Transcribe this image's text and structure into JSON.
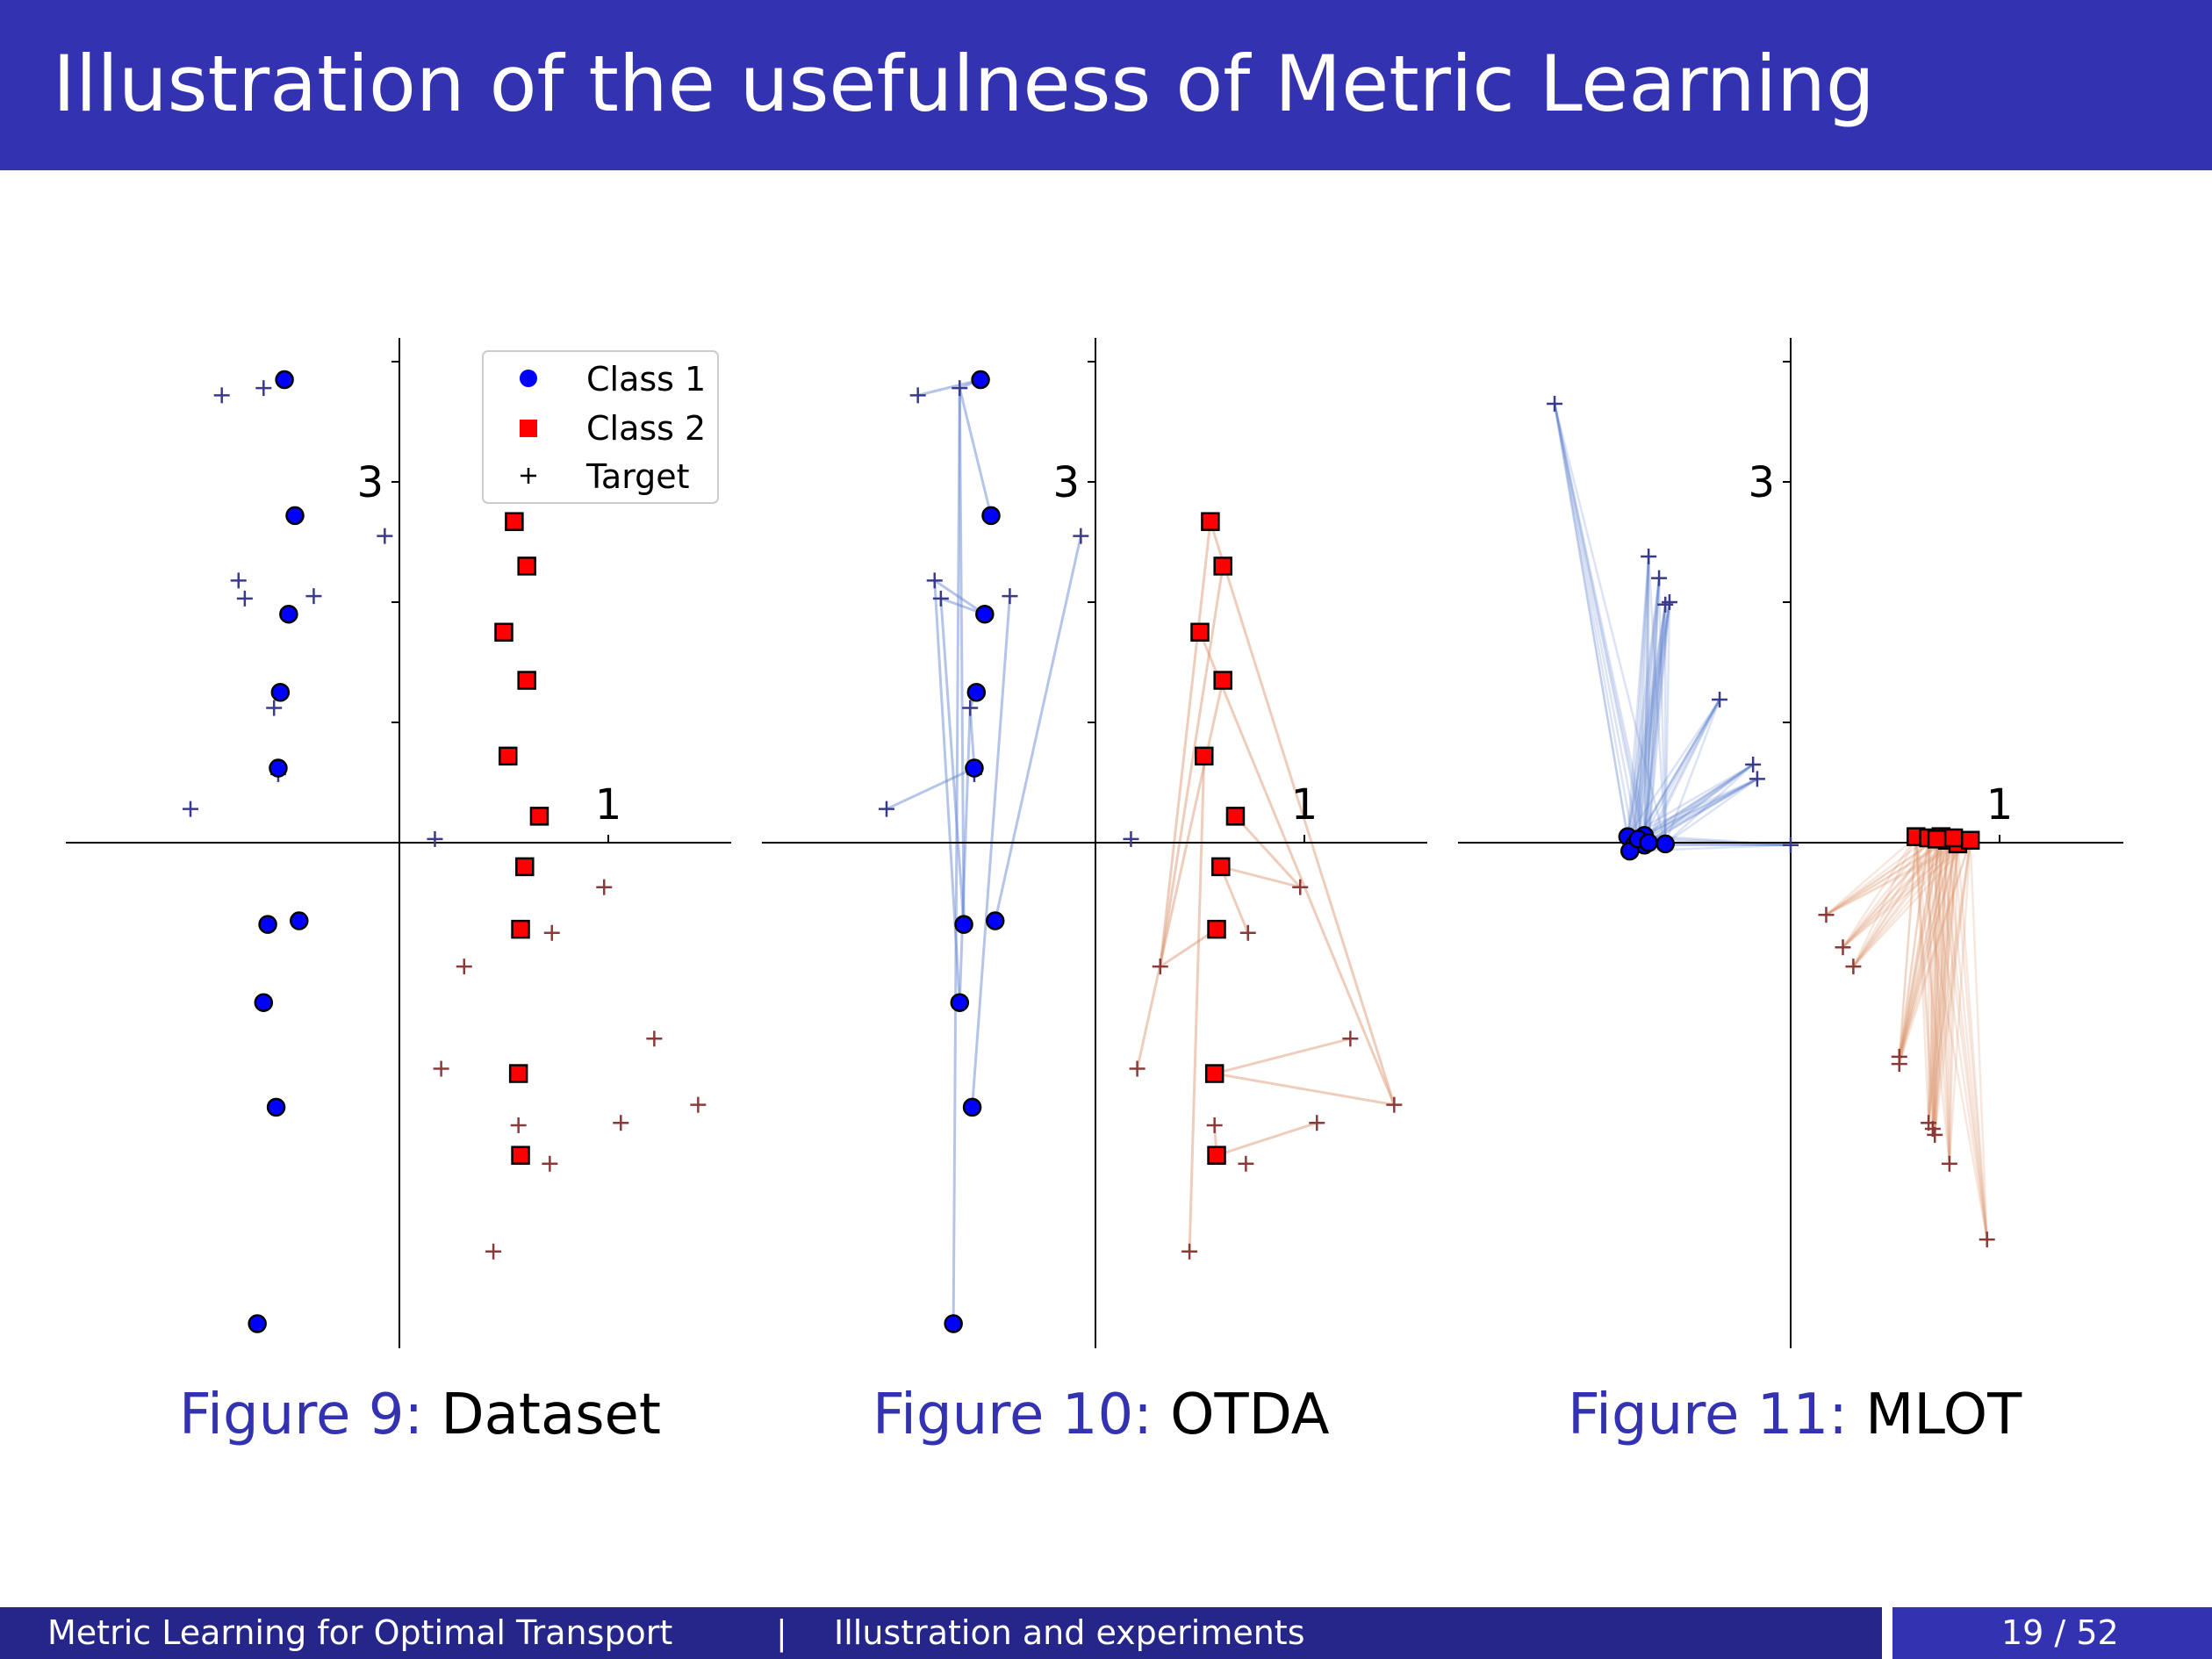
{
  "slide": {
    "title": "Illustration of the usefulness of Metric Learning"
  },
  "footer": {
    "talk_title": "Metric Learning for Optimal Transport",
    "separator": "|",
    "section": "Illustration and experiments",
    "page": "19 / 52"
  },
  "colors": {
    "title_bar": "#3333b2",
    "footer_dark": "#25258a",
    "class1": "#0000ff",
    "class2": "#ff0000",
    "target_blue": "#3a3a8c",
    "target_red": "#8b3a3a",
    "link_blue": "#5b7fcf",
    "link_red": "#d9906a"
  },
  "legend": [
    {
      "marker": "circle",
      "label": "Class 1"
    },
    {
      "marker": "square",
      "label": "Class 2"
    },
    {
      "marker": "plus",
      "label": "Target"
    }
  ],
  "chart_data": [
    {
      "type": "scatter",
      "caption_prefix": "Figure 9:",
      "caption": "Dataset",
      "tick_labels": {
        "x": "1",
        "y": "3"
      },
      "xlim": [
        -1.6,
        1.6
      ],
      "ylim": [
        -4.1,
        4.2
      ],
      "class1": [
        [
          -0.55,
          3.85
        ],
        [
          -0.5,
          2.72
        ],
        [
          -0.53,
          1.9
        ],
        [
          -0.57,
          1.25
        ],
        [
          -0.58,
          0.62
        ],
        [
          -0.63,
          -0.68
        ],
        [
          -0.48,
          -0.65
        ],
        [
          -0.65,
          -1.33
        ],
        [
          -0.59,
          -2.2
        ],
        [
          -0.68,
          -4.0
        ]
      ],
      "class2": [
        [
          0.55,
          2.67
        ],
        [
          0.61,
          2.3
        ],
        [
          0.5,
          1.75
        ],
        [
          0.61,
          1.35
        ],
        [
          0.52,
          0.72
        ],
        [
          0.67,
          0.22
        ],
        [
          0.6,
          -0.2
        ],
        [
          0.58,
          -0.72
        ],
        [
          0.57,
          -1.92
        ],
        [
          0.58,
          -2.6
        ]
      ],
      "target_class1": [
        [
          -0.85,
          3.72
        ],
        [
          -0.65,
          3.78
        ],
        [
          -0.07,
          2.55
        ],
        [
          -0.77,
          2.18
        ],
        [
          -0.74,
          2.03
        ],
        [
          -0.41,
          2.05
        ],
        [
          -0.6,
          1.12
        ],
        [
          -0.58,
          0.57
        ],
        [
          -1.0,
          0.28
        ],
        [
          0.17,
          0.03
        ]
      ],
      "target_class2": [
        [
          0.98,
          -0.37
        ],
        [
          0.73,
          -0.75
        ],
        [
          0.31,
          -1.03
        ],
        [
          1.22,
          -1.63
        ],
        [
          0.2,
          -1.88
        ],
        [
          1.43,
          -2.18
        ],
        [
          0.57,
          -2.35
        ],
        [
          1.06,
          -2.33
        ],
        [
          0.72,
          -2.67
        ],
        [
          0.45,
          -3.4
        ]
      ],
      "show_links": false,
      "show_legend": true
    },
    {
      "type": "scatter",
      "caption_prefix": "Figure 10:",
      "caption": "OTDA",
      "tick_labels": {
        "x": "1",
        "y": "3"
      },
      "xlim": [
        -1.6,
        1.6
      ],
      "ylim": [
        -4.1,
        4.2
      ],
      "class1": [
        [
          -0.55,
          3.85
        ],
        [
          -0.5,
          2.72
        ],
        [
          -0.53,
          1.9
        ],
        [
          -0.57,
          1.25
        ],
        [
          -0.58,
          0.62
        ],
        [
          -0.63,
          -0.68
        ],
        [
          -0.48,
          -0.65
        ],
        [
          -0.65,
          -1.33
        ],
        [
          -0.59,
          -2.2
        ],
        [
          -0.68,
          -4.0
        ]
      ],
      "class2": [
        [
          0.55,
          2.67
        ],
        [
          0.61,
          2.3
        ],
        [
          0.5,
          1.75
        ],
        [
          0.61,
          1.35
        ],
        [
          0.52,
          0.72
        ],
        [
          0.67,
          0.22
        ],
        [
          0.6,
          -0.2
        ],
        [
          0.58,
          -0.72
        ],
        [
          0.57,
          -1.92
        ],
        [
          0.58,
          -2.6
        ]
      ],
      "target_class1": [
        [
          -0.85,
          3.72
        ],
        [
          -0.65,
          3.78
        ],
        [
          -0.07,
          2.55
        ],
        [
          -0.77,
          2.18
        ],
        [
          -0.74,
          2.03
        ],
        [
          -0.41,
          2.05
        ],
        [
          -0.6,
          1.12
        ],
        [
          -0.58,
          0.57
        ],
        [
          -1.0,
          0.28
        ],
        [
          0.17,
          0.03
        ]
      ],
      "target_class2": [
        [
          0.98,
          -0.37
        ],
        [
          0.73,
          -0.75
        ],
        [
          0.31,
          -1.03
        ],
        [
          1.22,
          -1.63
        ],
        [
          0.2,
          -1.88
        ],
        [
          1.43,
          -2.18
        ],
        [
          0.57,
          -2.35
        ],
        [
          1.06,
          -2.33
        ],
        [
          0.72,
          -2.67
        ],
        [
          0.45,
          -3.4
        ]
      ],
      "links_blue": [
        [
          0,
          0
        ],
        [
          0,
          1
        ],
        [
          1,
          1
        ],
        [
          2,
          4
        ],
        [
          2,
          3
        ],
        [
          3,
          6
        ],
        [
          4,
          6
        ],
        [
          4,
          8
        ],
        [
          5,
          1
        ],
        [
          6,
          2
        ],
        [
          7,
          3
        ],
        [
          8,
          5
        ],
        [
          9,
          1
        ],
        [
          5,
          4
        ],
        [
          7,
          6
        ]
      ],
      "links_red": [
        [
          0,
          2
        ],
        [
          1,
          2
        ],
        [
          2,
          5
        ],
        [
          3,
          4
        ],
        [
          4,
          9
        ],
        [
          5,
          0
        ],
        [
          6,
          1
        ],
        [
          7,
          2
        ],
        [
          8,
          3
        ],
        [
          9,
          6
        ],
        [
          9,
          7
        ],
        [
          8,
          5
        ],
        [
          6,
          0
        ],
        [
          0,
          5
        ]
      ],
      "show_links": true,
      "show_legend": false
    },
    {
      "type": "scatter",
      "caption_prefix": "Figure 11:",
      "caption": "MLOT",
      "tick_labels": {
        "x": "1",
        "y": "3"
      },
      "xlim": [
        -1.6,
        1.6
      ],
      "ylim": [
        -4.1,
        4.2
      ],
      "class1": [
        [
          -0.78,
          0.05
        ],
        [
          -0.7,
          0.06
        ],
        [
          -0.75,
          -0.02
        ],
        [
          -0.7,
          -0.02
        ],
        [
          -0.77,
          -0.07
        ],
        [
          -0.6,
          -0.01
        ],
        [
          -0.73,
          0.03
        ],
        [
          -0.68,
          0.0
        ]
      ],
      "class2": [
        [
          0.6,
          0.05
        ],
        [
          0.66,
          0.04
        ],
        [
          0.72,
          0.05
        ],
        [
          0.75,
          0.02
        ],
        [
          0.8,
          -0.01
        ],
        [
          0.86,
          0.02
        ],
        [
          0.7,
          0.03
        ],
        [
          0.78,
          0.04
        ]
      ],
      "target_class1": [
        [
          -1.13,
          3.65
        ],
        [
          -0.68,
          2.38
        ],
        [
          -0.63,
          2.2
        ],
        [
          -0.58,
          2.0
        ],
        [
          -0.6,
          1.98
        ],
        [
          -0.34,
          1.19
        ],
        [
          -0.18,
          0.65
        ],
        [
          -0.16,
          0.53
        ],
        [
          0.0,
          -0.02
        ]
      ],
      "target_class2": [
        [
          0.17,
          -0.6
        ],
        [
          0.25,
          -0.87
        ],
        [
          0.3,
          -1.03
        ],
        [
          0.52,
          -1.78
        ],
        [
          0.52,
          -1.84
        ],
        [
          0.66,
          -2.33
        ],
        [
          0.68,
          -2.38
        ],
        [
          0.69,
          -2.43
        ],
        [
          0.76,
          -2.67
        ],
        [
          0.94,
          -3.3
        ]
      ],
      "links_blue_to_class_center": true,
      "links_red_to_class_center": true,
      "show_links": true,
      "show_legend": false
    }
  ]
}
